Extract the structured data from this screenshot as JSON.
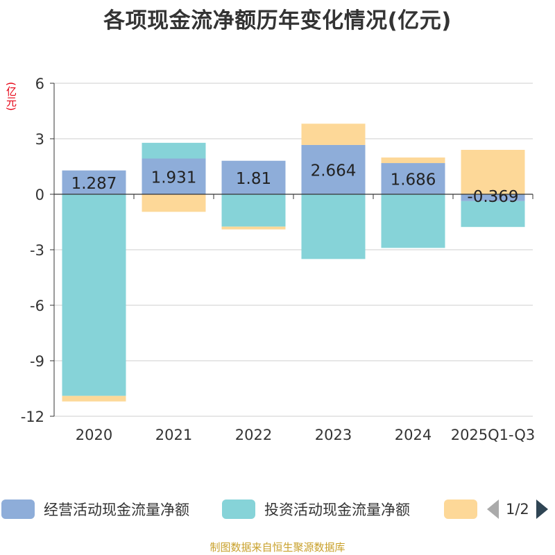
{
  "title": "各项现金流净额历年变化情况(亿元)",
  "footer": "制图数据来自恒生聚源数据库",
  "legend": {
    "items": [
      {
        "label": "经营活动现金流量净额",
        "color": "#8eadd9"
      },
      {
        "label": "投资活动现金流量净额",
        "color": "#86d3d8"
      },
      {
        "label": "",
        "color": "#fdd898"
      }
    ],
    "page_text": "1/2"
  },
  "chart_data": {
    "type": "bar",
    "stacked": true,
    "title": "各项现金流净额历年变化情况(亿元)",
    "ylabel": "(亿元)",
    "xlabel": "",
    "ylim": [
      -12,
      6
    ],
    "yticks": [
      6,
      3,
      0,
      -3,
      -6,
      -9,
      -12
    ],
    "grid": true,
    "categories": [
      "2020",
      "2021",
      "2022",
      "2023",
      "2024",
      "2025Q1-Q3"
    ],
    "series": [
      {
        "name": "经营活动现金流量净额",
        "color": "#8eadd9",
        "values": [
          1.287,
          1.931,
          1.81,
          2.664,
          1.686,
          -0.369
        ],
        "labels_shown": true
      },
      {
        "name": "投资活动现金流量净额",
        "color": "#86d3d8",
        "values": [
          -10.9,
          0.85,
          -1.75,
          -3.5,
          -2.9,
          -1.4
        ],
        "labels_shown": false
      },
      {
        "name": "",
        "color": "#fdd898",
        "values": [
          -0.3,
          -0.95,
          -0.15,
          1.15,
          0.3,
          2.4
        ],
        "labels_shown": false
      }
    ]
  }
}
